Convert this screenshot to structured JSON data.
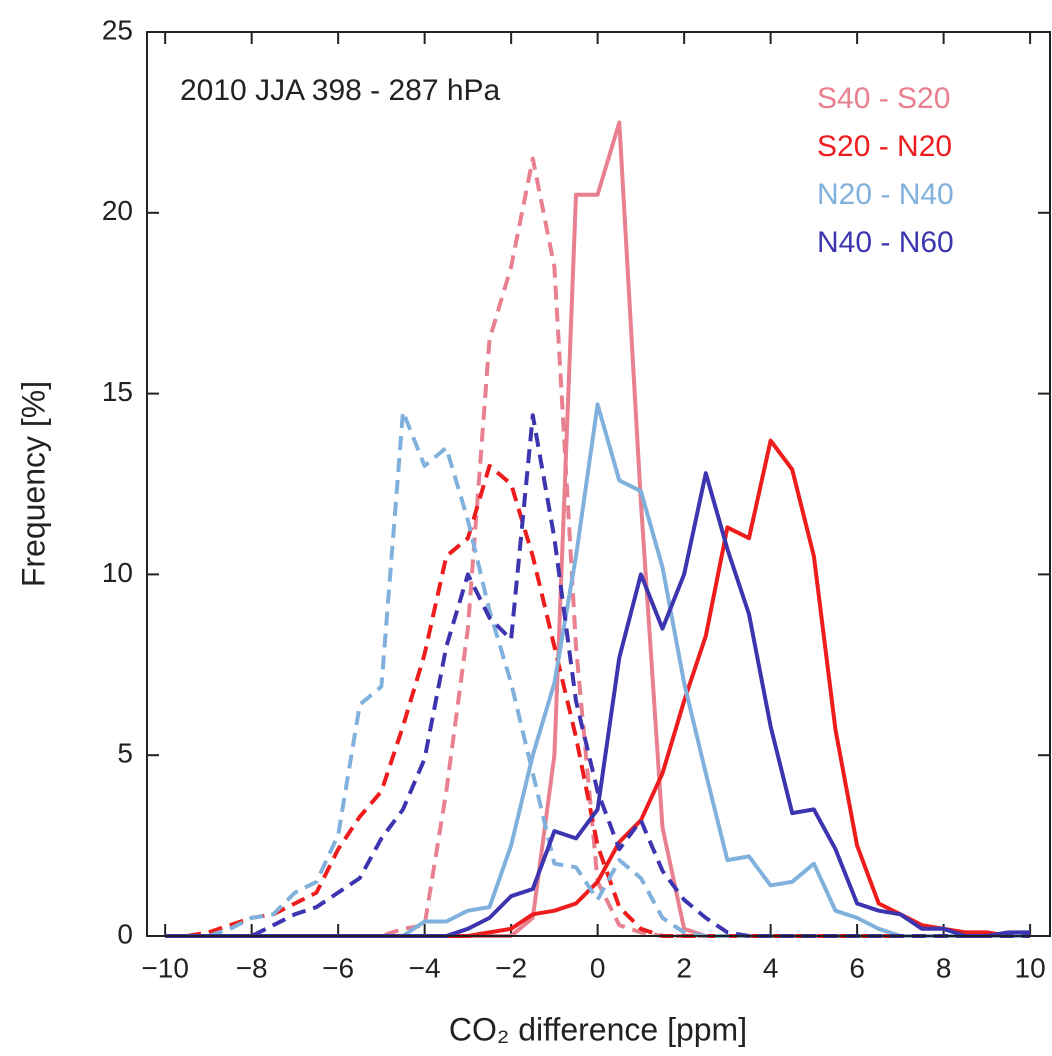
{
  "chart_data": {
    "type": "line",
    "annotation": "2010 JJA  398 - 287 hPa",
    "xlabel": "CO₂ difference [ppm]",
    "ylabel": "Frequency [%]",
    "x": [
      -10,
      -9.5,
      -9,
      -8.5,
      -8,
      -7.5,
      -7,
      -6.5,
      -6,
      -5.5,
      -5,
      -4.5,
      -4,
      -3.5,
      -3,
      -2.5,
      -2,
      -1.5,
      -1,
      -0.5,
      0,
      0.5,
      1,
      1.5,
      2,
      2.5,
      3,
      3.5,
      4,
      4.5,
      5,
      5.5,
      6,
      6.5,
      7,
      7.5,
      8,
      8.5,
      9,
      9.5,
      10
    ],
    "series": [
      {
        "name": "S40 - S20",
        "color": "#e8808f",
        "values": [
          0,
          0,
          0,
          0,
          0,
          0,
          0,
          0,
          0,
          0,
          0,
          0,
          0,
          0,
          0,
          0,
          0,
          0.5,
          5,
          20.5,
          20.5,
          22.5,
          12,
          3,
          0.2,
          0,
          0,
          0,
          0,
          0,
          0,
          0,
          0,
          0,
          0,
          0,
          0,
          0,
          0,
          0,
          0
        ],
        "dashed_values": [
          0,
          0,
          0,
          0,
          0,
          0,
          0,
          0,
          0,
          0,
          0,
          0.2,
          0.3,
          4,
          8.5,
          16.5,
          18.5,
          21.5,
          18.5,
          8,
          1.5,
          0.3,
          0.1,
          0,
          0,
          0,
          0,
          0,
          0,
          0,
          0,
          0,
          0,
          0,
          0,
          0,
          0,
          0,
          0,
          0,
          0
        ]
      },
      {
        "name": "S20 - N20",
        "color": "#ee1c1c",
        "values": [
          0,
          0,
          0,
          0,
          0,
          0,
          0,
          0,
          0,
          0,
          0,
          0,
          0,
          0,
          0,
          0.1,
          0.2,
          0.6,
          0.7,
          0.9,
          1.5,
          2.6,
          3.2,
          4.5,
          6.5,
          8.3,
          11.3,
          11,
          13.7,
          12.9,
          10.5,
          5.7,
          2.5,
          0.9,
          0.6,
          0.3,
          0.2,
          0.1,
          0.1,
          0,
          0.1
        ],
        "dashed_values": [
          0,
          0,
          0.1,
          0.3,
          0.5,
          0.6,
          0.9,
          1.2,
          2.4,
          3.3,
          4,
          5.8,
          7.8,
          10.5,
          11,
          13,
          12.5,
          10.5,
          8,
          5.5,
          2.5,
          0.8,
          0.2,
          0,
          0,
          0,
          0,
          0,
          0,
          0,
          0,
          0,
          0,
          0,
          0,
          0,
          0,
          0,
          0,
          0,
          0
        ]
      },
      {
        "name": "N20 - N40",
        "color": "#80b0dc",
        "values": [
          0,
          0,
          0,
          0,
          0,
          0,
          0,
          0,
          0,
          0,
          0,
          0,
          0.4,
          0.4,
          0.7,
          0.8,
          2.5,
          5,
          7,
          10.5,
          14.7,
          12.6,
          12.3,
          10.2,
          7,
          4.5,
          2.1,
          2.2,
          1.4,
          1.5,
          2,
          0.7,
          0.5,
          0.2,
          0,
          0,
          0,
          0,
          0,
          0,
          0
        ],
        "dashed_values": [
          0,
          0,
          0,
          0.2,
          0.5,
          0.6,
          1.2,
          1.5,
          2.8,
          6.4,
          6.9,
          14.5,
          13,
          13.5,
          11.5,
          9,
          7,
          4.5,
          2,
          1.9,
          1,
          2.1,
          1.6,
          0.5,
          0.1,
          0,
          0,
          0,
          0,
          0,
          0,
          0,
          0,
          0,
          0,
          0,
          0,
          0,
          0,
          0,
          0
        ]
      },
      {
        "name": "N40 - N60",
        "color": "#3d35b0",
        "values": [
          0,
          0,
          0,
          0,
          0,
          0,
          0,
          0,
          0,
          0,
          0,
          0,
          0,
          0,
          0.2,
          0.5,
          1.1,
          1.3,
          2.9,
          2.7,
          3.5,
          7.7,
          10,
          8.5,
          10,
          12.8,
          10.7,
          8.9,
          5.8,
          3.4,
          3.5,
          2.4,
          0.9,
          0.7,
          0.6,
          0.2,
          0.2,
          0,
          0,
          0.1,
          0.1
        ],
        "dashed_values": [
          0,
          0,
          0,
          0,
          0,
          0.3,
          0.6,
          0.8,
          1.2,
          1.6,
          2.7,
          3.5,
          4.9,
          8,
          10,
          8.8,
          8.2,
          14.4,
          11,
          6.5,
          4,
          2.4,
          3.2,
          1.8,
          1,
          0.5,
          0.1,
          0,
          0,
          0,
          0,
          0,
          0,
          0,
          0,
          0,
          0,
          0,
          0,
          0,
          0
        ]
      }
    ],
    "xlim": [
      -10.42,
      10.46
    ],
    "xticks": [
      {
        "value": -10,
        "label": "−10"
      },
      {
        "value": -8,
        "label": "−8"
      },
      {
        "value": -6,
        "label": "−6"
      },
      {
        "value": -4,
        "label": "−4"
      },
      {
        "value": -2,
        "label": "−2"
      },
      0,
      2,
      4,
      6,
      8,
      10
    ],
    "ylim": [
      0,
      25
    ],
    "yticks": [
      0,
      5,
      10,
      15,
      20,
      25
    ],
    "grid": false
  }
}
